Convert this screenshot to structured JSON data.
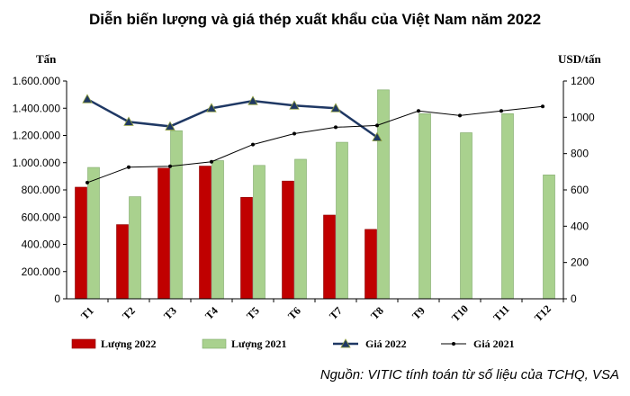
{
  "chart_data": {
    "type": "bar",
    "title": "Diễn biến lượng và giá thép xuất khẩu của Việt Nam năm 2022",
    "y_left_label": "Tấn",
    "y_right_label": "USD/tấn",
    "y_left_ticks": [
      "0",
      "200.000",
      "400.000",
      "600.000",
      "800.000",
      "1.000.000",
      "1.200.000",
      "1.400.000",
      "1.600.000"
    ],
    "y_right_ticks": [
      "0",
      "200",
      "400",
      "600",
      "800",
      "1000",
      "1200"
    ],
    "ylim_left": [
      0,
      1600000
    ],
    "ylim_right": [
      0,
      1200
    ],
    "categories": [
      "T1",
      "T2",
      "T3",
      "T4",
      "T5",
      "T6",
      "T7",
      "T8",
      "T9",
      "T10",
      "T11",
      "T12"
    ],
    "series": [
      {
        "name": "Lượng 2022",
        "kind": "bar",
        "axis": "left",
        "color": "#c00000",
        "values": [
          820000,
          545000,
          960000,
          975000,
          745000,
          865000,
          615000,
          510000,
          null,
          null,
          null,
          null
        ]
      },
      {
        "name": "Lượng 2021",
        "kind": "bar",
        "axis": "left",
        "color": "#a9d18e",
        "values": [
          965000,
          750000,
          1235000,
          1015000,
          980000,
          1025000,
          1150000,
          1535000,
          1360000,
          1220000,
          1360000,
          910000
        ]
      },
      {
        "name": "Giá 2022",
        "kind": "line",
        "axis": "right",
        "color": "#1f3864",
        "marker": "triangle",
        "values": [
          1100,
          975,
          950,
          1050,
          1090,
          1065,
          1050,
          890,
          null,
          null,
          null,
          null
        ]
      },
      {
        "name": "Giá 2021",
        "kind": "line",
        "axis": "right",
        "color": "#000000",
        "marker": "dot",
        "values": [
          640,
          725,
          730,
          755,
          850,
          910,
          945,
          955,
          1035,
          1010,
          1035,
          1060
        ]
      }
    ]
  },
  "source": "Nguồn: VITIC tính toán từ số liệu của TCHQ, VSA"
}
